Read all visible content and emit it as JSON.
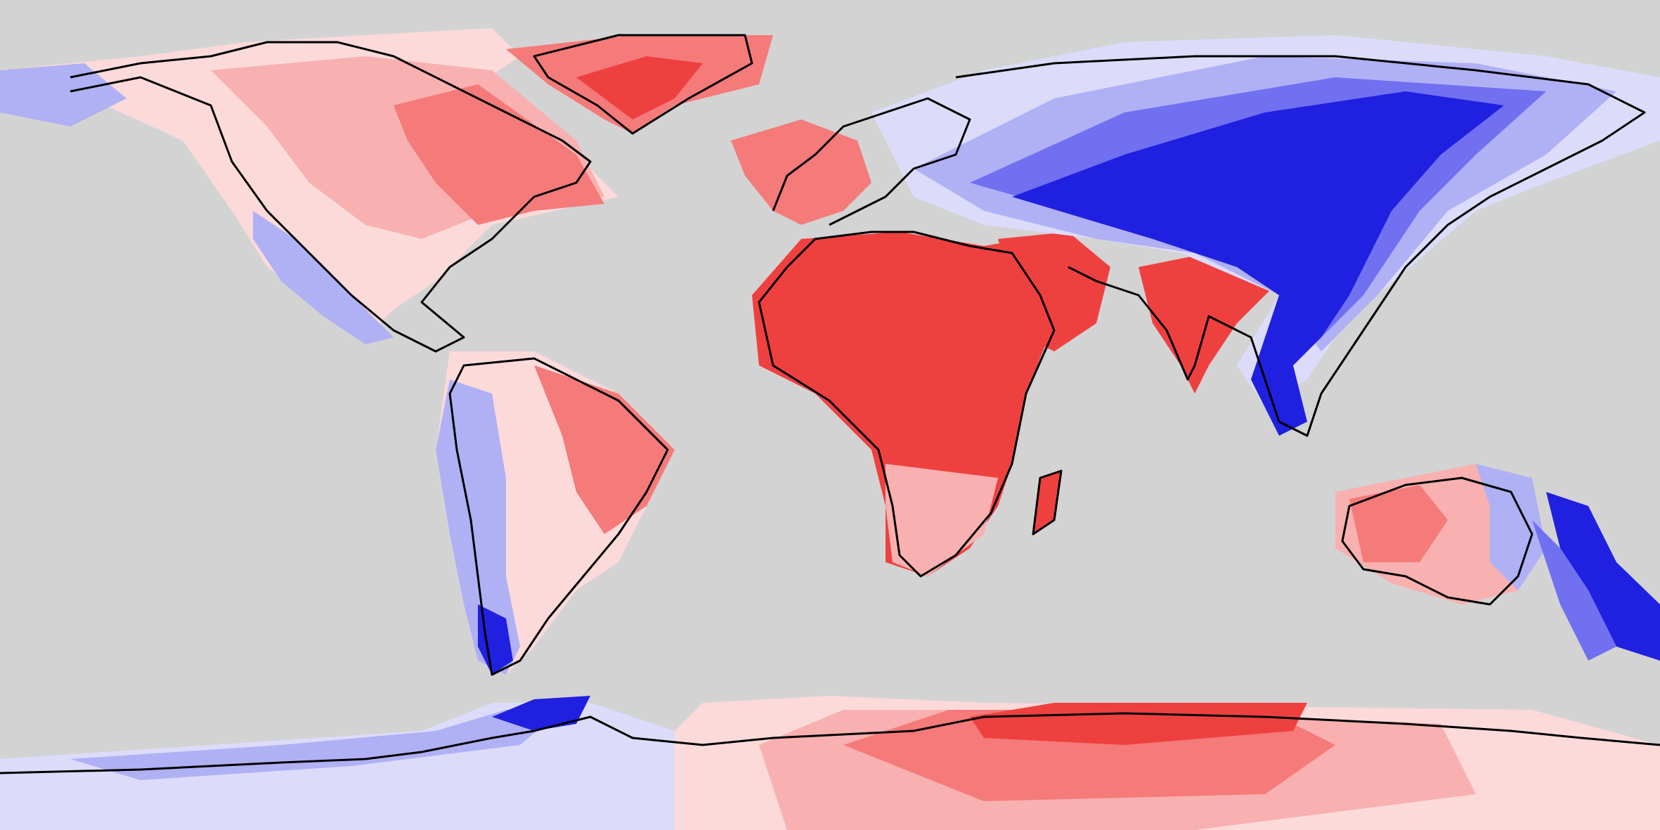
{
  "map": {
    "projection": "equirectangular",
    "background": "#d3d3d3",
    "coastline_color": "#000000",
    "palette": {
      "red_strong": "#ef4040",
      "red_mid": "#f57a7a",
      "red_light": "#f8b0b0",
      "red_pale": "#fcdada",
      "blue_pale": "#dcdcfa",
      "blue_light": "#b0b0f5",
      "blue_mid": "#7070f0",
      "blue_strong": "#2020e0"
    },
    "legend": "none"
  }
}
